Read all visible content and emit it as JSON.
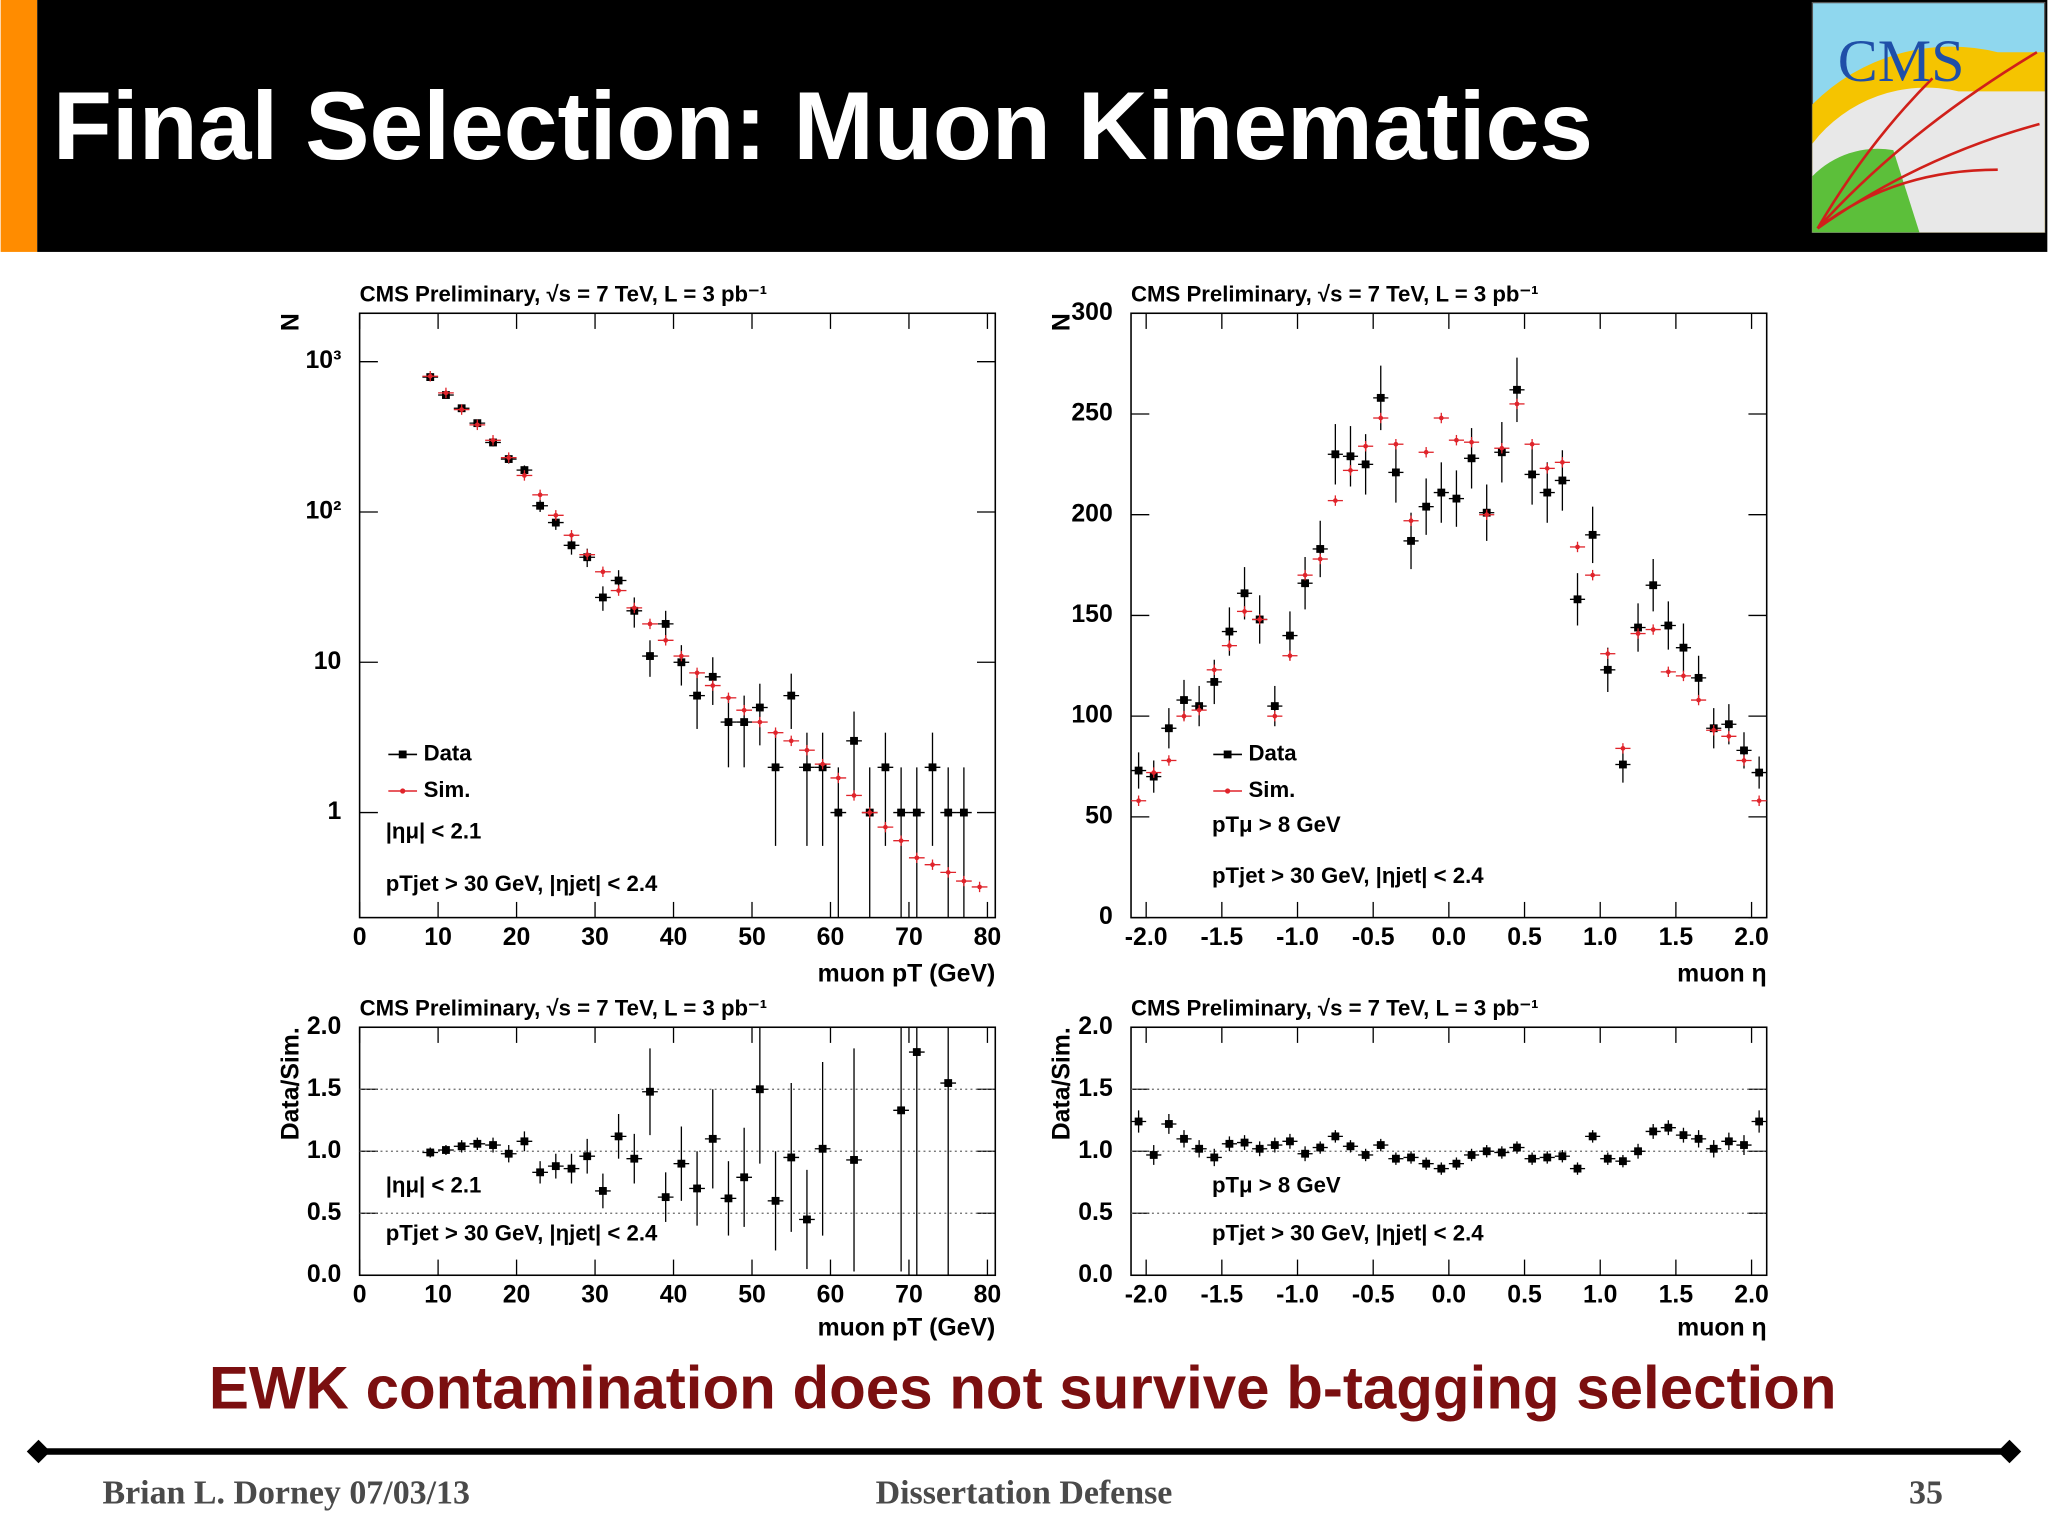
{
  "header": {
    "title": "Final Selection: Muon Kinematics",
    "logo": "CMS"
  },
  "message": "EWK contamination does not survive b-tagging selection",
  "footer": {
    "author": "Brian L. Dorney 07/03/13",
    "event": "Dissertation Defense",
    "page": "35"
  },
  "chart_data": [
    {
      "type": "errorbar",
      "title": "CMS Preliminary, √s = 7 TeV, L = 3 pb⁻¹",
      "x_label": "muon pT (GeV)",
      "y_label": "N",
      "log_y": true,
      "legend": "left",
      "x": [
        9,
        11,
        13,
        15,
        17,
        19,
        21,
        23,
        25,
        27,
        29,
        31,
        33,
        35,
        37,
        39,
        41,
        43,
        45,
        47,
        49,
        51,
        53,
        55,
        57,
        59,
        61,
        63,
        65,
        67,
        69,
        71,
        73,
        75,
        77,
        79
      ],
      "series": [
        {
          "name": "Data",
          "color": "#000000",
          "values": [
            790,
            600,
            490,
            390,
            290,
            225,
            190,
            110,
            85,
            60,
            50,
            27,
            35,
            22,
            11,
            18,
            10,
            6,
            8,
            4,
            4,
            5,
            2,
            6,
            2,
            2,
            1,
            3,
            1,
            2,
            1,
            1,
            2,
            1,
            1,
            null
          ],
          "errors": [
            28,
            24,
            22,
            20,
            17,
            15,
            14,
            10,
            9,
            8,
            7,
            5,
            6,
            5,
            3,
            4,
            3,
            2.4,
            2.8,
            2,
            2,
            2.2,
            1.4,
            2.4,
            1.4,
            1.4,
            1,
            1.7,
            1,
            1.4,
            1,
            1,
            1.4,
            1,
            1,
            null
          ]
        },
        {
          "name": "Sim.",
          "color": "#e0242b",
          "values": [
            800,
            620,
            480,
            380,
            300,
            230,
            175,
            130,
            95,
            70,
            52,
            40,
            30,
            23,
            18,
            14,
            11,
            8.5,
            7,
            5.8,
            4.8,
            4,
            3.4,
            3,
            2.6,
            2.1,
            1.7,
            1.3,
            1,
            0.8,
            0.65,
            0.5,
            0.45,
            0.4,
            0.35,
            0.32
          ]
        }
      ],
      "annotations": [
        "|ημ| < 2.1",
        "pTjet > 30 GeV, |ηjet| < 2.4"
      ],
      "xlim": [
        0,
        81
      ],
      "xticks": [
        0,
        10,
        20,
        30,
        40,
        50,
        60,
        70,
        80
      ],
      "ylim": [
        0.2,
        2100
      ],
      "yticks": [
        1,
        10,
        {
          "value": 100,
          "label": "10²"
        },
        {
          "value": 1000,
          "label": "10³"
        }
      ]
    },
    {
      "type": "errorbar",
      "title": "CMS Preliminary, √s = 7 TeV, L = 3 pb⁻¹",
      "x_label": "muon η",
      "y_label": "N",
      "legend": "left",
      "x": [
        -2.05,
        -1.95,
        -1.85,
        -1.75,
        -1.65,
        -1.55,
        -1.45,
        -1.35,
        -1.25,
        -1.15,
        -1.05,
        -0.95,
        -0.85,
        -0.75,
        -0.65,
        -0.55,
        -0.45,
        -0.35,
        -0.25,
        -0.15,
        -0.05,
        0.05,
        0.15,
        0.25,
        0.35,
        0.45,
        0.55,
        0.65,
        0.75,
        0.85,
        0.95,
        1.05,
        1.15,
        1.25,
        1.35,
        1.45,
        1.55,
        1.65,
        1.75,
        1.85,
        1.95,
        2.05
      ],
      "series": [
        {
          "name": "Data",
          "color": "#000000",
          "values": [
            73,
            70,
            94,
            108,
            105,
            117,
            142,
            161,
            148,
            105,
            140,
            166,
            183,
            230,
            229,
            225,
            258,
            221,
            187,
            204,
            211,
            208,
            228,
            201,
            231,
            262,
            220,
            211,
            217,
            158,
            190,
            123,
            76,
            144,
            165,
            145,
            134,
            119,
            94,
            96,
            83,
            72
          ],
          "errors": [
            9,
            8,
            10,
            10,
            10,
            11,
            12,
            13,
            12,
            10,
            12,
            13,
            14,
            15,
            15,
            15,
            16,
            15,
            14,
            14,
            15,
            14,
            15,
            14,
            15,
            16,
            15,
            15,
            15,
            13,
            14,
            11,
            9,
            12,
            13,
            12,
            12,
            11,
            10,
            10,
            9,
            8
          ]
        },
        {
          "name": "Sim.",
          "color": "#e0242b",
          "values": [
            58,
            72,
            78,
            100,
            103,
            123,
            135,
            152,
            148,
            100,
            130,
            170,
            178,
            207,
            222,
            234,
            248,
            235,
            197,
            231,
            248,
            237,
            236,
            200,
            233,
            255,
            235,
            223,
            226,
            184,
            170,
            131,
            84,
            141,
            143,
            122,
            120,
            108,
            93,
            90,
            78,
            58
          ]
        }
      ],
      "annotations": [
        "pTμ > 8 GeV",
        "pTjet > 30 GeV, |ηjet| < 2.4"
      ],
      "xlim": [
        -2.1,
        2.1
      ],
      "xticks": [
        {
          "value": -2,
          "label": "-2.0"
        },
        -1.5,
        {
          "value": -1,
          "label": "-1.0"
        },
        -0.5,
        {
          "value": 0,
          "label": "0.0"
        },
        0.5,
        {
          "value": 1,
          "label": "1.0"
        },
        1.5,
        {
          "value": 2,
          "label": "2.0"
        }
      ],
      "ylim": [
        0,
        300
      ],
      "yticks": [
        0,
        50,
        100,
        150,
        200,
        250,
        300
      ]
    },
    {
      "type": "errorbar",
      "title": "CMS Preliminary, √s = 7 TeV, L = 3 pb⁻¹",
      "x_label": "muon pT (GeV)",
      "y_label": "Data/Sim.",
      "grid": true,
      "x": [
        9,
        11,
        13,
        15,
        17,
        19,
        21,
        23,
        25,
        27,
        29,
        31,
        33,
        35,
        37,
        39,
        41,
        43,
        45,
        47,
        49,
        51,
        53,
        55,
        57,
        59,
        61,
        63,
        65,
        67,
        69,
        71,
        73,
        75,
        77,
        79
      ],
      "series": [
        {
          "name": "Data/Sim.",
          "color": "#000000",
          "values": [
            0.99,
            1.01,
            1.04,
            1.06,
            1.05,
            0.98,
            1.08,
            0.83,
            0.88,
            0.86,
            0.96,
            0.68,
            1.12,
            0.94,
            1.48,
            0.63,
            0.9,
            0.7,
            1.1,
            0.62,
            0.79,
            1.5,
            0.6,
            0.95,
            0.45,
            1.02,
            null,
            0.93,
            null,
            null,
            1.33,
            1.8,
            null,
            1.55,
            null,
            null
          ],
          "errors": [
            0.04,
            0.04,
            0.05,
            0.05,
            0.06,
            0.07,
            0.08,
            0.09,
            0.1,
            0.12,
            0.14,
            0.14,
            0.18,
            0.2,
            0.35,
            0.2,
            0.3,
            0.3,
            0.4,
            0.3,
            0.4,
            0.6,
            0.4,
            0.6,
            0.4,
            0.7,
            null,
            0.9,
            null,
            null,
            1.3,
            1.8,
            null,
            1.6,
            null,
            null
          ]
        }
      ],
      "annotations": [
        "|ημ| < 2.1",
        "pTjet > 30 GeV, |ηjet| < 2.4"
      ],
      "xlim": [
        0,
        81
      ],
      "xticks": [
        0,
        10,
        20,
        30,
        40,
        50,
        60,
        70,
        80
      ],
      "ylim": [
        0,
        2
      ],
      "yticks": [
        {
          "value": 0,
          "label": "0.0"
        },
        0.5,
        {
          "value": 1,
          "label": "1.0"
        },
        1.5,
        {
          "value": 2,
          "label": "2.0"
        }
      ]
    },
    {
      "type": "errorbar",
      "title": "CMS Preliminary, √s = 7 TeV, L = 3 pb⁻¹",
      "x_label": "muon η",
      "y_label": "Data/Sim.",
      "grid": true,
      "x": [
        -2.05,
        -1.95,
        -1.85,
        -1.75,
        -1.65,
        -1.55,
        -1.45,
        -1.35,
        -1.25,
        -1.15,
        -1.05,
        -0.95,
        -0.85,
        -0.75,
        -0.65,
        -0.55,
        -0.45,
        -0.35,
        -0.25,
        -0.15,
        -0.05,
        0.05,
        0.15,
        0.25,
        0.35,
        0.45,
        0.55,
        0.65,
        0.75,
        0.85,
        0.95,
        1.05,
        1.15,
        1.25,
        1.35,
        1.45,
        1.55,
        1.65,
        1.75,
        1.85,
        1.95,
        2.05
      ],
      "series": [
        {
          "name": "Data/Sim.",
          "color": "#000000",
          "values": [
            1.24,
            0.97,
            1.22,
            1.1,
            1.02,
            0.95,
            1.06,
            1.07,
            1.02,
            1.05,
            1.08,
            0.98,
            1.03,
            1.12,
            1.04,
            0.97,
            1.05,
            0.94,
            0.95,
            0.9,
            0.86,
            0.9,
            0.97,
            1,
            0.99,
            1.03,
            0.94,
            0.95,
            0.96,
            0.86,
            1.12,
            0.94,
            0.92,
            1,
            1.16,
            1.19,
            1.13,
            1.1,
            1.02,
            1.08,
            1.05,
            1.24
          ],
          "errors": [
            0.09,
            0.08,
            0.08,
            0.07,
            0.07,
            0.07,
            0.06,
            0.06,
            0.06,
            0.06,
            0.06,
            0.06,
            0.05,
            0.05,
            0.05,
            0.05,
            0.05,
            0.05,
            0.05,
            0.05,
            0.05,
            0.05,
            0.05,
            0.05,
            0.05,
            0.05,
            0.05,
            0.05,
            0.05,
            0.05,
            0.05,
            0.05,
            0.05,
            0.06,
            0.06,
            0.06,
            0.06,
            0.07,
            0.07,
            0.07,
            0.08,
            0.09
          ]
        }
      ],
      "annotations": [
        "pTμ > 8 GeV",
        "pTjet > 30 GeV, |ηjet| < 2.4"
      ],
      "xlim": [
        -2.1,
        2.1
      ],
      "xticks": [
        {
          "value": -2,
          "label": "-2.0"
        },
        -1.5,
        {
          "value": -1,
          "label": "-1.0"
        },
        -0.5,
        {
          "value": 0,
          "label": "0.0"
        },
        0.5,
        {
          "value": 1,
          "label": "1.0"
        },
        1.5,
        {
          "value": 2,
          "label": "2.0"
        }
      ],
      "ylim": [
        0,
        2
      ],
      "yticks": [
        {
          "value": 0,
          "label": "0.0"
        },
        0.5,
        {
          "value": 1,
          "label": "1.0"
        },
        1.5,
        {
          "value": 2,
          "label": "2.0"
        }
      ]
    }
  ]
}
